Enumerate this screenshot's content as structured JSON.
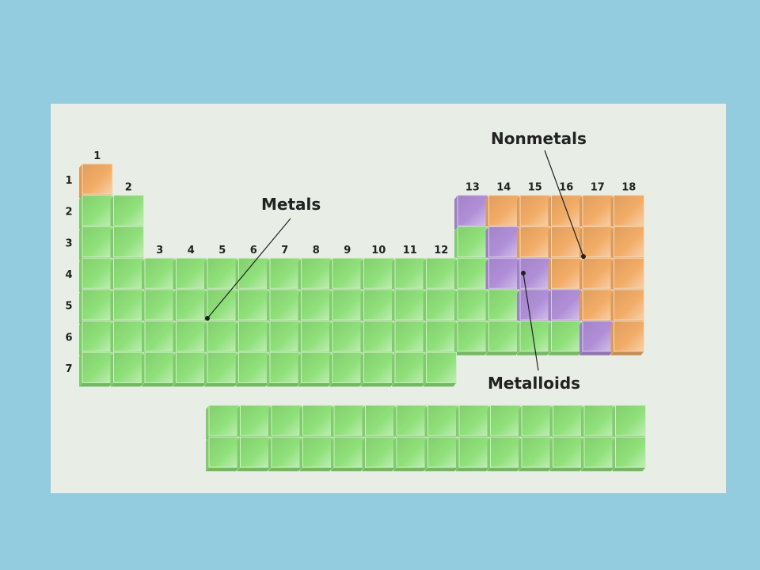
{
  "colors": {
    "background": "#93CCDE",
    "panel": "#E8EDE6",
    "metal": "#8FE07A",
    "metalloid": "#B08FD8",
    "nonmetal": "#F2AC66",
    "label": "#222222"
  },
  "labels": {
    "metals": "Metals",
    "nonmetals": "Nonmetals",
    "metalloids": "Metalloids"
  },
  "periods": [
    "1",
    "2",
    "3",
    "4",
    "5",
    "6",
    "7"
  ],
  "groups": [
    "1",
    "2",
    "3",
    "4",
    "5",
    "6",
    "7",
    "8",
    "9",
    "10",
    "11",
    "12",
    "13",
    "14",
    "15",
    "16",
    "17",
    "18"
  ],
  "main_table": [
    "N                 ",
    "MM          LNNNNN",
    "MM          MLNNNN",
    "MMMMMMMMMMMMMLLNNN",
    "MMMMMMMMMMMMMMLLNN",
    "MMMMMMMMMMMMMMMMLN",
    "MMMMMMMMMMMM      "
  ],
  "f_block_rows": 2,
  "f_block_columns": 14,
  "legend": {
    "M": "metals",
    "L": "metalloids",
    "N": "nonmetals"
  }
}
